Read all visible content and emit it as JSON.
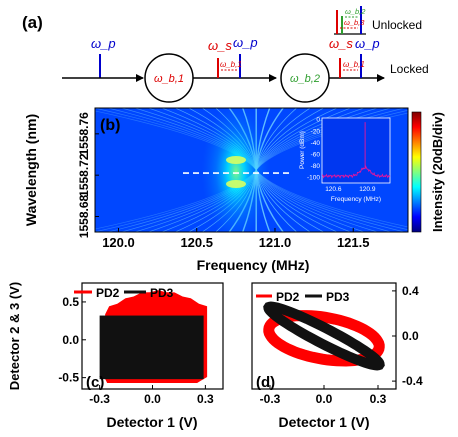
{
  "panel_a": {
    "label": "(a)",
    "omega_p_in": "ω_p",
    "ring1": "ω_b,1",
    "omega_s_1": "ω_s",
    "omega_b1_1": "ω_b,1",
    "omega_p_1": "ω_p",
    "ring2": "ω_b,2",
    "unlocked_label": "Unlocked",
    "locked_label": "Locked",
    "ul_b2": "ω_b,2",
    "ul_b3": "ω_b,3",
    "l_s": "ω_s",
    "l_p": "ω_p",
    "l_b1": "ω_b,1",
    "colors": {
      "pump": "#0000cc",
      "signal": "#dd0000",
      "ring2": "#2e9e2e",
      "arrow": "#000000"
    }
  },
  "chart_data": [
    {
      "type": "heatmap",
      "label": "(b)",
      "xlabel": "Frequency (MHz)",
      "ylabel": "Wavelength (nm)",
      "xticks": [
        "120.0",
        "120.5",
        "121.0",
        "121.5"
      ],
      "xlim": [
        119.85,
        121.85
      ],
      "yticks": [
        "1558.76",
        "1558.72",
        "1558.68"
      ],
      "ytick_values": [
        1558.76,
        1558.72,
        1558.68
      ],
      "ylim": [
        1558.665,
        1558.785
      ],
      "center_frequency_mhz": 120.88,
      "dashed_line_wavelength": 1558.722,
      "colorbar_label": "Intensity (20dB/div)",
      "colormap": [
        "#00007f",
        "#0000ff",
        "#0080ff",
        "#00ffff",
        "#80ff80",
        "#ffff00",
        "#ff8000",
        "#ff0000",
        "#7f0000"
      ],
      "inset": {
        "type": "line",
        "xlabel": "Frequency (MHz)",
        "ylabel": "Power (dBm)",
        "xticks": [
          "120.6",
          "120.9"
        ],
        "xlim": [
          120.5,
          121.1
        ],
        "yticks": [
          "0",
          "-20",
          "-40",
          "-60",
          "-80",
          "-100"
        ],
        "ylim": [
          -110,
          2
        ],
        "noise_floor_dbm": -98,
        "peak": {
          "x": 120.88,
          "y": -5
        },
        "color": "#e8149c"
      }
    },
    {
      "type": "scatter",
      "label": "(c)",
      "xlabel": "Detector 1 (V)",
      "ylabel": "Detector 2 & 3 (V)",
      "xticks": [
        "-0.3",
        "0.0",
        "0.3"
      ],
      "xlim": [
        -0.4,
        0.4
      ],
      "yticks": [
        "0.5",
        "0.0",
        "-0.5"
      ],
      "ylim": [
        -0.65,
        0.75
      ],
      "series": [
        {
          "name": "PD2",
          "color": "#ff0000",
          "shape": "filled-region",
          "x_range": [
            -0.28,
            0.31
          ],
          "y_range": [
            -0.57,
            0.68
          ]
        },
        {
          "name": "PD3",
          "color": "#111111",
          "shape": "filled-rectangle",
          "x_range": [
            -0.3,
            0.29
          ],
          "y_range": [
            -0.52,
            0.32
          ]
        }
      ]
    },
    {
      "type": "scatter",
      "label": "(d)",
      "xlabel": "Detector 1 (V)",
      "ylabel": "",
      "xticks": [
        "-0.3",
        "0.0",
        "0.3"
      ],
      "xlim": [
        -0.4,
        0.4
      ],
      "yticks": [
        "0.4",
        "0.0",
        "-0.4"
      ],
      "ylim": [
        -0.47,
        0.47
      ],
      "series": [
        {
          "name": "PD2",
          "color": "#ff0000",
          "shape": "ellipse",
          "center": [
            0.0,
            -0.02
          ],
          "radius_x": 0.32,
          "radius_y": 0.18,
          "angle_deg": -20
        },
        {
          "name": "PD3",
          "color": "#111111",
          "shape": "ellipse",
          "center": [
            0.0,
            0.0
          ],
          "radius_x": 0.4,
          "radius_y": 0.06,
          "angle_deg": -40
        }
      ]
    }
  ]
}
